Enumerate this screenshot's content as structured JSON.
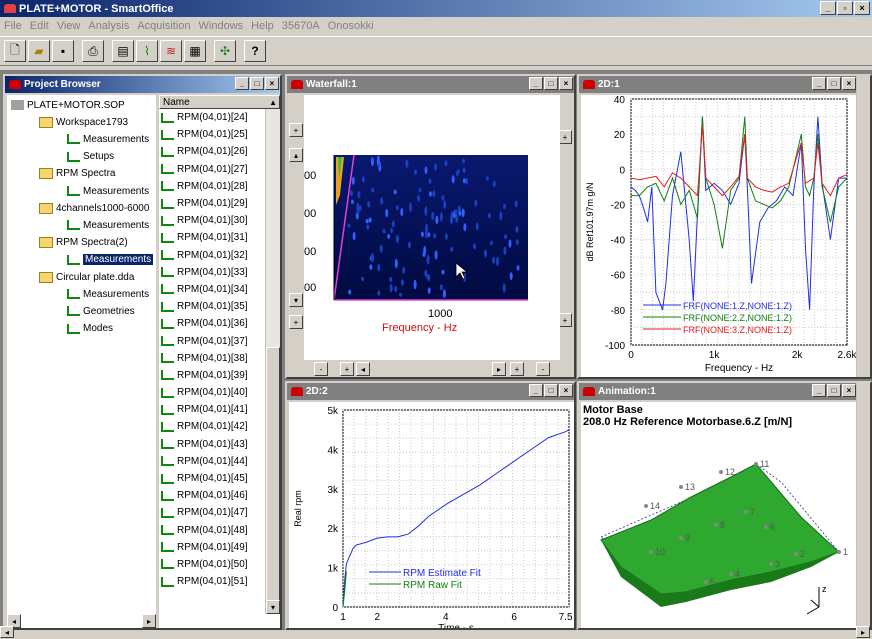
{
  "app": {
    "title": "PLATE+MOTOR - SmartOffice"
  },
  "menu": [
    "File",
    "Edit",
    "View",
    "Analysis",
    "Acquisition",
    "Windows",
    "Help",
    "35670A",
    "Onosokki"
  ],
  "toolbar": {
    "icons": [
      "new-file-icon",
      "open-folder-icon",
      "save-icon",
      "print-icon",
      "print-preview-icon",
      "frf-icon",
      "waterfall-icon",
      "image-icon",
      "geometry-icon",
      "help-icon"
    ]
  },
  "project_browser": {
    "title": "Project Browser",
    "tree": [
      {
        "label": "PLATE+MOTOR.SOP",
        "level": 0
      },
      {
        "label": "Workspace1793",
        "level": 1
      },
      {
        "label": "Measurements",
        "level": 2
      },
      {
        "label": "Setups",
        "level": 2
      },
      {
        "label": "RPM Spectra",
        "level": 1
      },
      {
        "label": "Measurements",
        "level": 2
      },
      {
        "label": "4channels1000-6000",
        "level": 1
      },
      {
        "label": "Measurements",
        "level": 2
      },
      {
        "label": "RPM Spectra(2)",
        "level": 1
      },
      {
        "label": "Measurements",
        "level": 2,
        "selected": true
      },
      {
        "label": "Circular plate.dda",
        "level": 1
      },
      {
        "label": "Measurements",
        "level": 2
      },
      {
        "label": "Geometries",
        "level": 2
      },
      {
        "label": "Modes",
        "level": 2
      }
    ],
    "list_header": "Name",
    "list": [
      "RPM(04,01)[24]",
      "RPM(04,01)[25]",
      "RPM(04,01)[26]",
      "RPM(04,01)[27]",
      "RPM(04,01)[28]",
      "RPM(04,01)[29]",
      "RPM(04,01)[30]",
      "RPM(04,01)[31]",
      "RPM(04,01)[32]",
      "RPM(04,01)[33]",
      "RPM(04,01)[34]",
      "RPM(04,01)[35]",
      "RPM(04,01)[36]",
      "RPM(04,01)[37]",
      "RPM(04,01)[38]",
      "RPM(04,01)[39]",
      "RPM(04,01)[40]",
      "RPM(04,01)[41]",
      "RPM(04,01)[42]",
      "RPM(04,01)[43]",
      "RPM(04,01)[44]",
      "RPM(04,01)[45]",
      "RPM(04,01)[46]",
      "RPM(04,01)[47]",
      "RPM(04,01)[48]",
      "RPM(04,01)[49]",
      "RPM(04,01)[50]",
      "RPM(04,01)[51]"
    ]
  },
  "waterfall": {
    "title": "Waterfall:1",
    "xlabel": "Frequency - Hz",
    "xtick": "1000",
    "ytick_fragment": "00"
  },
  "frf_window": {
    "title": "2D:1"
  },
  "rpm_window": {
    "title": "2D:2"
  },
  "animation": {
    "title": "Animation:1",
    "heading": "Motor Base",
    "subheading": "208.0 Hz Reference Motorbase.6.Z [m/N]",
    "nodes": [
      "1",
      "2",
      "3",
      "4",
      "5",
      "6",
      "7",
      "8",
      "9",
      "10",
      "11",
      "12",
      "13",
      "14"
    ],
    "axis_label": "z"
  },
  "chart_data": [
    {
      "type": "line",
      "ylabel": "dB Ref101.97m g/N",
      "xlabel": "Frequency - Hz",
      "xlim": [
        0,
        2600
      ],
      "ylim": [
        -100,
        40
      ],
      "xticks": [
        "0",
        "1k",
        "2k",
        "2.6k"
      ],
      "yticks": [
        "40",
        "20",
        "0",
        "-20",
        "-40",
        "-60",
        "-80",
        "-100"
      ],
      "grid": true,
      "legend": "bottom-left",
      "series": [
        {
          "name": "FRF(NONE:1.Z,NONE:1.Z)",
          "color": "#2030e0",
          "x": [
            0,
            50,
            100,
            150,
            200,
            250,
            300,
            380,
            420,
            500,
            600,
            700,
            750,
            800,
            860,
            900,
            1000,
            1100,
            1200,
            1300,
            1370,
            1400,
            1450,
            1550,
            1650,
            1750,
            1850,
            1950,
            2050,
            2100,
            2150,
            2200,
            2250,
            2300,
            2400,
            2500,
            2600
          ],
          "y": [
            -10,
            -12,
            -15,
            -22,
            -30,
            -10,
            -70,
            -80,
            -65,
            -15,
            10,
            -40,
            -75,
            -25,
            30,
            -12,
            -8,
            -12,
            -20,
            -8,
            20,
            -10,
            -65,
            -30,
            -22,
            -18,
            -10,
            -15,
            15,
            -45,
            -80,
            -10,
            30,
            -8,
            -40,
            -5,
            -5
          ]
        },
        {
          "name": "FRF(NONE:2.Z,NONE:1.Z)",
          "color": "#108010",
          "x": [
            0,
            100,
            200,
            300,
            400,
            500,
            600,
            700,
            800,
            860,
            900,
            1000,
            1100,
            1200,
            1300,
            1370,
            1400,
            1500,
            1600,
            1700,
            1800,
            1900,
            2000,
            2050,
            2100,
            2150,
            2200,
            2250,
            2300,
            2400,
            2500,
            2600
          ],
          "y": [
            -15,
            -15,
            -10,
            -8,
            -18,
            -5,
            -20,
            -12,
            -28,
            30,
            -5,
            -20,
            -45,
            -12,
            -5,
            30,
            -5,
            -18,
            -20,
            -22,
            -18,
            -10,
            10,
            20,
            -10,
            -15,
            -5,
            20,
            -10,
            -30,
            -10,
            -5
          ]
        },
        {
          "name": "FRF(NONE:3.Z,NONE:1.Z)",
          "color": "#e02020",
          "x": [
            0,
            100,
            200,
            300,
            400,
            500,
            600,
            700,
            800,
            860,
            900,
            1000,
            1100,
            1200,
            1300,
            1370,
            1400,
            1500,
            1600,
            1700,
            1800,
            1900,
            2000,
            2050,
            2100,
            2200,
            2250,
            2300,
            2400,
            2500,
            2600
          ],
          "y": [
            -5,
            -6,
            -5,
            -4,
            -10,
            -2,
            -5,
            -10,
            -15,
            25,
            -5,
            -10,
            -15,
            -10,
            -4,
            20,
            -5,
            -10,
            -12,
            -13,
            -10,
            -8,
            8,
            15,
            -8,
            -5,
            15,
            -8,
            -15,
            -5,
            -3
          ]
        }
      ]
    },
    {
      "type": "line",
      "ylabel": "Real rpm",
      "xlabel": "Time - s",
      "xlim": [
        1,
        7.6
      ],
      "ylim": [
        0,
        5000
      ],
      "xticks": [
        "1",
        "2",
        "4",
        "6",
        "7.5"
      ],
      "yticks": [
        "5k",
        "4k",
        "3k",
        "2k",
        "1k",
        "0"
      ],
      "grid": true,
      "legend": "bottom-center",
      "series": [
        {
          "name": "RPM Estimate Fit",
          "color": "#2030e0",
          "x": [
            1,
            1.05,
            1.1,
            1.2,
            1.3,
            1.4,
            1.5,
            1.7,
            2,
            2.3,
            2.6,
            2.9,
            3.2,
            3.5,
            4,
            4.5,
            5,
            5.5,
            6,
            6.5,
            7,
            7.5,
            7.6
          ],
          "y": [
            0,
            700,
            1100,
            1300,
            1500,
            1580,
            1600,
            1650,
            1750,
            1780,
            1780,
            1850,
            2050,
            2300,
            2600,
            2850,
            3100,
            3400,
            3700,
            4000,
            4300,
            4450,
            4500
          ]
        },
        {
          "name": "RPM Raw Fit",
          "color": "#108010",
          "x": [
            1,
            1.05,
            1.1
          ],
          "y": [
            0,
            400,
            900
          ]
        }
      ]
    }
  ]
}
